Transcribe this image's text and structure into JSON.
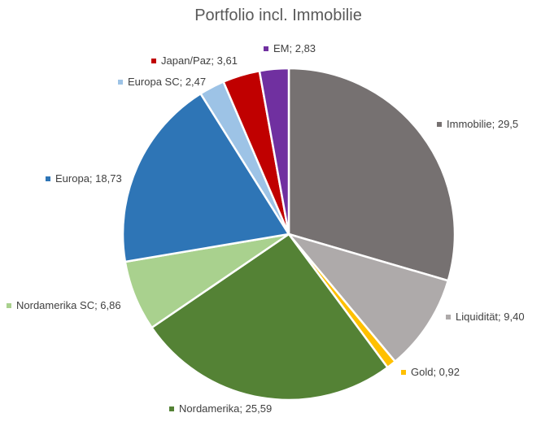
{
  "chart_data": {
    "type": "pie",
    "title": "Portfolio incl. Immobilie",
    "start": "top, clockwise",
    "slices": [
      {
        "label": "Immobilie",
        "value": 29.5,
        "value_text": "29,5",
        "color": "#767171"
      },
      {
        "label": "Liquidität",
        "value": 9.4,
        "value_text": "9,40",
        "color": "#AEAAAA"
      },
      {
        "label": "Gold",
        "value": 0.92,
        "value_text": "0,92",
        "color": "#FFC000"
      },
      {
        "label": "Nordamerika",
        "value": 25.59,
        "value_text": "25,59",
        "color": "#548235"
      },
      {
        "label": "Nordamerika  SC",
        "value": 6.86,
        "value_text": "6,86",
        "color": "#A9D18E"
      },
      {
        "label": "Europa",
        "value": 18.73,
        "value_text": "18,73",
        "color": "#2E75B6"
      },
      {
        "label": "Europa SC",
        "value": 2.47,
        "value_text": "2,47",
        "color": "#9DC3E6"
      },
      {
        "label": "Japan/Paz",
        "value": 3.61,
        "value_text": "3,61",
        "color": "#C00000"
      },
      {
        "label": "EM",
        "value": 2.83,
        "value_text": "2,83",
        "color": "#7030A0"
      }
    ]
  }
}
